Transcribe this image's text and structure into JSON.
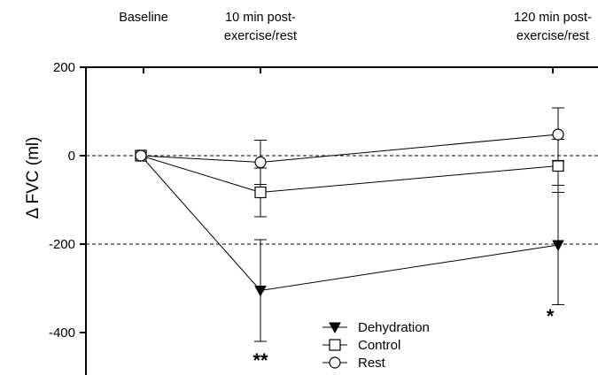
{
  "chart_data": {
    "type": "line",
    "title": "",
    "xlabel": "",
    "ylabel": "Δ FVC (ml)",
    "categories": [
      "Baseline",
      "10 min post-\nexercise/rest",
      "120 min post-\nexercise/rest"
    ],
    "ylim": [
      -500,
      200
    ],
    "yticks": [
      200,
      0,
      -200,
      -400
    ],
    "reference_lines": [
      0,
      -200
    ],
    "series": [
      {
        "name": "Dehydration",
        "marker": "filled-triangle-down",
        "values": [
          0,
          -305,
          -202
        ],
        "errors": [
          0,
          115,
          135
        ]
      },
      {
        "name": "Control",
        "marker": "open-square",
        "values": [
          0,
          -83,
          -23
        ],
        "errors": [
          0,
          55,
          60
        ]
      },
      {
        "name": "Rest",
        "marker": "open-circle",
        "values": [
          0,
          -15,
          48
        ],
        "errors": [
          0,
          50,
          60
        ]
      }
    ],
    "annotations": [
      {
        "text": "**",
        "category_index": 1
      },
      {
        "text": "*",
        "category_index": 2
      }
    ],
    "legend_position": "bottom-center",
    "grid": false
  }
}
